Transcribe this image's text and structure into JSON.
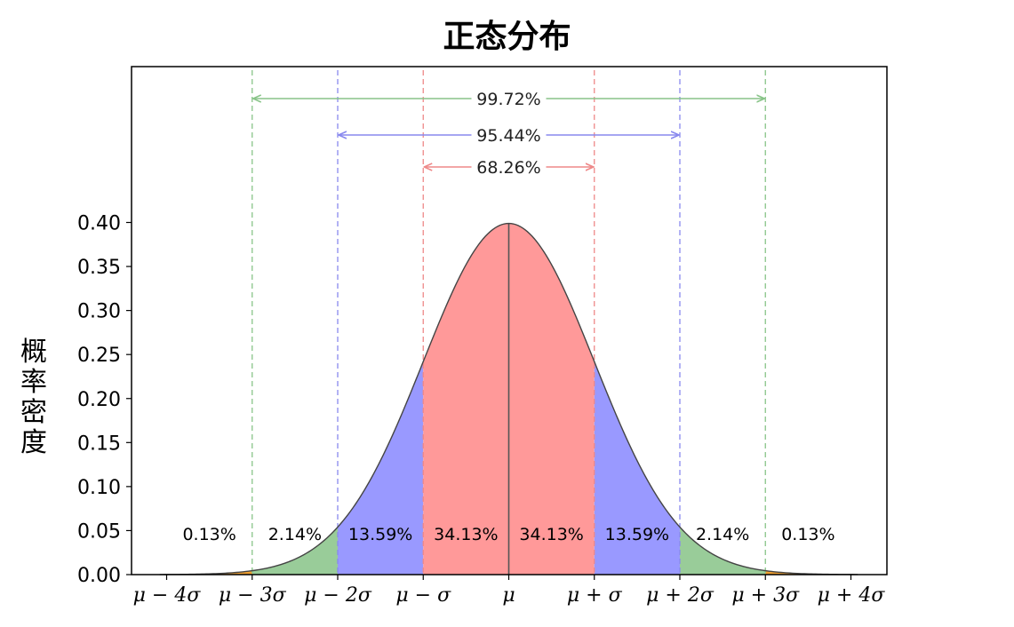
{
  "chart_data": {
    "type": "area",
    "title": "正态分布",
    "ylabel": "概率密度",
    "xlabel": "",
    "xlim": [
      -4.08,
      4.08
    ],
    "ylim": [
      0.0,
      0.4
    ],
    "yticks": [
      0.0,
      0.05,
      0.1,
      0.15,
      0.2,
      0.25,
      0.3,
      0.35,
      0.4
    ],
    "ytick_labels": [
      "0.00",
      "0.05",
      "0.10",
      "0.15",
      "0.20",
      "0.25",
      "0.30",
      "0.35",
      "0.40"
    ],
    "xticks": [
      -4,
      -3,
      -2,
      -1,
      0,
      1,
      2,
      3,
      4
    ],
    "xtick_labels": [
      "μ − 4σ",
      "μ − 3σ",
      "μ − 2σ",
      "μ − σ",
      "μ",
      "μ + σ",
      "μ + 2σ",
      "μ + 3σ",
      "μ + 4σ"
    ],
    "curve": "standard normal pdf, mean 0, sd 1",
    "regions": [
      {
        "from": -4,
        "to": -3,
        "label": "0.13%",
        "color": "#f0a030"
      },
      {
        "from": -3,
        "to": -2,
        "label": "2.14%",
        "color": "#99cc99"
      },
      {
        "from": -2,
        "to": -1,
        "label": "13.59%",
        "color": "#9999ff"
      },
      {
        "from": -1,
        "to": 0,
        "label": "34.13%",
        "color": "#ff9999"
      },
      {
        "from": 0,
        "to": 1,
        "label": "34.13%",
        "color": "#ff9999"
      },
      {
        "from": 1,
        "to": 2,
        "label": "13.59%",
        "color": "#9999ff"
      },
      {
        "from": 2,
        "to": 3,
        "label": "2.14%",
        "color": "#99cc99"
      },
      {
        "from": 3,
        "to": 4,
        "label": "0.13%",
        "color": "#f0a030"
      }
    ],
    "intervals": [
      {
        "sigma": 3,
        "label": "99.72%",
        "color": "#88c488"
      },
      {
        "sigma": 2,
        "label": "95.44%",
        "color": "#8888ee"
      },
      {
        "sigma": 1,
        "label": "68.26%",
        "color": "#ee8888"
      }
    ],
    "grid": false,
    "legend": "none"
  }
}
